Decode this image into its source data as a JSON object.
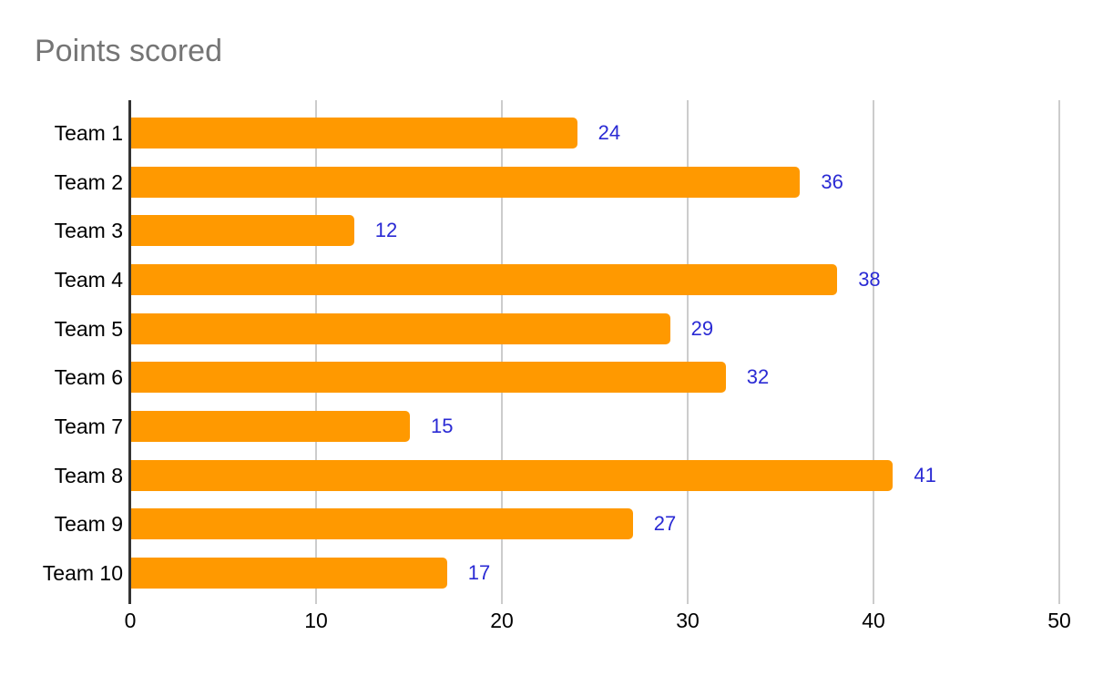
{
  "title": "Points scored",
  "colors": {
    "bar": "#ff9900",
    "value_label": "#2a2ad4",
    "title": "#757575",
    "axis_line": "#333333",
    "gridline": "#cccccc",
    "label": "#000000",
    "background": "#ffffff"
  },
  "chart_data": {
    "type": "bar",
    "orientation": "horizontal",
    "title": "Points scored",
    "categories": [
      "Team 1",
      "Team 2",
      "Team 3",
      "Team 4",
      "Team 5",
      "Team 6",
      "Team 7",
      "Team 8",
      "Team 9",
      "Team 10"
    ],
    "values": [
      24,
      36,
      12,
      38,
      29,
      32,
      15,
      41,
      27,
      17
    ],
    "xlabel": "",
    "ylabel": "",
    "xlim": [
      0,
      50
    ],
    "xticks": [
      0,
      10,
      20,
      30,
      40,
      50
    ],
    "grid": "vertical-major",
    "legend": "none",
    "value_labels": "outside-end"
  }
}
